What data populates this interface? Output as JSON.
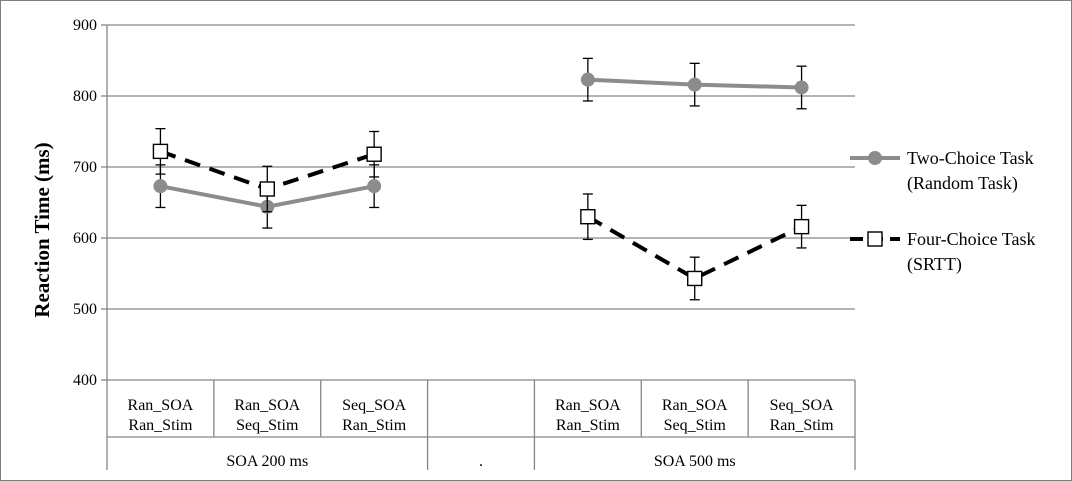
{
  "chart_data": {
    "type": "line",
    "ylabel": "Reaction Time (ms)",
    "ylim": [
      400,
      900
    ],
    "yticks": [
      400,
      500,
      600,
      700,
      800,
      900
    ],
    "grid": true,
    "legend_position": "right",
    "categories": [
      [
        "Ran_SOA",
        "Ran_Stim"
      ],
      [
        "Ran_SOA",
        "Seq_Stim"
      ],
      [
        "Seq_SOA",
        "Ran_Stim"
      ],
      [
        "",
        ""
      ],
      [
        "Ran_SOA",
        "Ran_Stim"
      ],
      [
        "Ran_SOA",
        "Seq_Stim"
      ],
      [
        "Seq_SOA",
        "Ran_Stim"
      ]
    ],
    "groups": [
      {
        "label": "SOA 200 ms",
        "start": 0,
        "end": 2
      },
      {
        "label": ".",
        "start": 3,
        "end": 3
      },
      {
        "label": "SOA 500 ms",
        "start": 4,
        "end": 6
      }
    ],
    "series": [
      {
        "name": "Two-Choice Task",
        "name_line2": "(Random Task)",
        "color": "#8c8c8c",
        "marker": "circle",
        "dash": "solid",
        "values": [
          673,
          644,
          673,
          null,
          823,
          816,
          812
        ],
        "errors": [
          30,
          30,
          30,
          null,
          30,
          30,
          30
        ]
      },
      {
        "name": "Four-Choice Task",
        "name_line2": "(SRTT)",
        "color": "#000000",
        "marker": "square",
        "dash": "dashed",
        "values": [
          722,
          669,
          718,
          null,
          630,
          543,
          616
        ],
        "errors": [
          32,
          32,
          32,
          null,
          32,
          30,
          30
        ]
      }
    ]
  }
}
